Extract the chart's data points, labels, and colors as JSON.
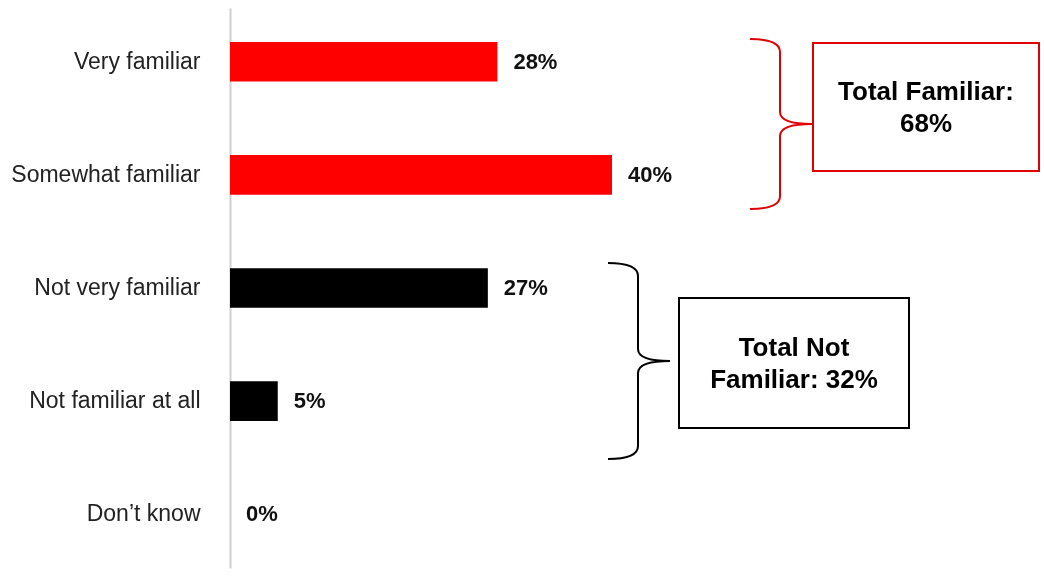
{
  "chart_data": {
    "type": "bar",
    "orientation": "horizontal",
    "categories": [
      "Very familiar",
      "Somewhat familiar",
      "Not very familiar",
      "Not familiar at all",
      "Don’t know"
    ],
    "values": [
      28,
      40,
      27,
      5,
      0
    ],
    "colors": [
      "#ff0000",
      "#ff0000",
      "#000000",
      "#000000",
      "#000000"
    ],
    "value_labels": [
      "28%",
      "40%",
      "27%",
      "5%",
      "0%"
    ],
    "annotations": [
      "Total Familiar: 68%",
      "Total Not Familiar: 32%"
    ]
  }
}
